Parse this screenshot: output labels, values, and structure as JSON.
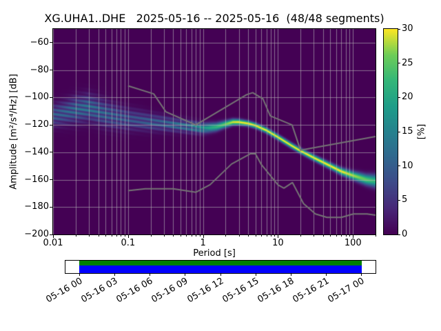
{
  "chart_data": {
    "type": "heatmap",
    "title": "XG.UHA1..DHE   2025-05-16 -- 2025-05-16  (48/48 segments)",
    "xlabel": "Period [s]",
    "ylabel": "Amplitude [m²/s⁴/Hz] [dB]",
    "xscale": "log",
    "xlim": [
      0.01,
      200
    ],
    "ylim": [
      -200,
      -50
    ],
    "x_ticks": [
      {
        "value": 0.01,
        "label": "0.01"
      },
      {
        "value": 0.1,
        "label": "0.1"
      },
      {
        "value": 1,
        "label": "1"
      },
      {
        "value": 10,
        "label": "10"
      },
      {
        "value": 100,
        "label": "100"
      }
    ],
    "y_ticks": [
      {
        "value": -60,
        "label": "−60"
      },
      {
        "value": -80,
        "label": "−80"
      },
      {
        "value": -100,
        "label": "−100"
      },
      {
        "value": -120,
        "label": "−120"
      },
      {
        "value": -140,
        "label": "−140"
      },
      {
        "value": -160,
        "label": "−160"
      },
      {
        "value": -180,
        "label": "−180"
      },
      {
        "value": -200,
        "label": "−200"
      }
    ],
    "colorbar": {
      "label": "[%]",
      "min": 0,
      "max": 30,
      "ticks": [
        0,
        5,
        10,
        15,
        20,
        25,
        30
      ],
      "colormap": "viridis"
    },
    "background_value_color": "#440154",
    "grid_color": "rgba(185,185,185,0.6)",
    "viridis_stops": [
      [
        0.0,
        "#440154"
      ],
      [
        0.125,
        "#482878"
      ],
      [
        0.25,
        "#3e4a89"
      ],
      [
        0.375,
        "#31688e"
      ],
      [
        0.5,
        "#26828e"
      ],
      [
        0.625,
        "#1f9e89"
      ],
      [
        0.75,
        "#35b779"
      ],
      [
        0.875,
        "#6ece58"
      ],
      [
        1.0,
        "#fde725"
      ]
    ],
    "psd_distribution": {
      "comment": "probabilistic PSD: mode amplitude (dB), peak probability (%), spread (dB) vs period (s)",
      "periods": [
        0.01,
        0.015,
        0.02,
        0.03,
        0.05,
        0.07,
        0.1,
        0.15,
        0.2,
        0.3,
        0.5,
        0.7,
        1.0,
        1.5,
        2.0,
        2.5,
        3.0,
        4.0,
        5.0,
        7.0,
        10,
        15,
        20,
        30,
        50,
        70,
        100,
        150,
        200
      ],
      "mode_db": [
        -113,
        -111,
        -109,
        -107.5,
        -112,
        -114,
        -116,
        -117,
        -118,
        -119,
        -120.5,
        -121.5,
        -122.5,
        -121.5,
        -119.5,
        -118,
        -118,
        -119,
        -120.5,
        -124,
        -129,
        -135,
        -139,
        -144,
        -150,
        -154,
        -157,
        -160,
        -161
      ],
      "peak_pct": [
        11,
        12,
        13,
        14,
        12,
        11,
        10,
        10,
        11,
        12,
        14,
        16,
        18,
        22,
        26,
        29,
        30,
        30,
        30,
        30,
        30,
        30,
        30,
        30,
        30,
        30,
        28,
        25,
        22
      ],
      "sigma_db": [
        5,
        5.5,
        6,
        6,
        6,
        5.5,
        5,
        4.5,
        4,
        3.5,
        3,
        2.8,
        2.5,
        2,
        1.7,
        1.5,
        1.4,
        1.3,
        1.3,
        1.3,
        1.3,
        1.3,
        1.3,
        1.4,
        1.5,
        1.7,
        2,
        2.5,
        3
      ]
    },
    "noise_models": {
      "comment": "Peterson NHNM / NLNM reference curves (gray lines)",
      "color": "#757575",
      "nhnm": {
        "periods": [
          0.1,
          0.22,
          0.32,
          0.8,
          3.8,
          4.6,
          6.3,
          7.9,
          15.4,
          20,
          200
        ],
        "db": [
          -91.5,
          -97.4,
          -110.5,
          -120,
          -98,
          -96.5,
          -101,
          -113.5,
          -120,
          -138.5,
          -128.5
        ]
      },
      "nlnm": {
        "periods": [
          0.1,
          0.17,
          0.4,
          0.8,
          1.24,
          2.4,
          4.3,
          5,
          6,
          10,
          12,
          15.6,
          21.9,
          31.6,
          45,
          70,
          101,
          154,
          200
        ],
        "db": [
          -168,
          -166.7,
          -166.7,
          -169.2,
          -163.7,
          -148.6,
          -141.1,
          -141.1,
          -149,
          -163.8,
          -166.2,
          -162.1,
          -177.5,
          -185,
          -187.5,
          -187.5,
          -185,
          -185,
          -185.9
        ]
      }
    },
    "timeline": {
      "tick_labels": [
        "05-16 00",
        "05-16 03",
        "05-16 06",
        "05-16 09",
        "05-16 12",
        "05-16 15",
        "05-16 18",
        "05-16 21",
        "05-17 00"
      ],
      "coverage": {
        "start_frac": 0.045,
        "end_frac": 0.955
      },
      "colors": {
        "processed": "#008000",
        "data": "#0000ff"
      }
    }
  }
}
